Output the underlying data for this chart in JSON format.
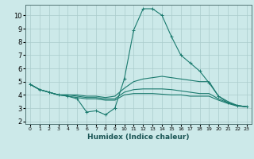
{
  "xlabel": "Humidex (Indice chaleur)",
  "xlim": [
    -0.5,
    23.5
  ],
  "ylim": [
    1.8,
    10.8
  ],
  "yticks": [
    2,
    3,
    4,
    5,
    6,
    7,
    8,
    9,
    10
  ],
  "xticks": [
    0,
    1,
    2,
    3,
    4,
    5,
    6,
    7,
    8,
    9,
    10,
    11,
    12,
    13,
    14,
    15,
    16,
    17,
    18,
    19,
    20,
    21,
    22,
    23
  ],
  "bg_color": "#cce9e9",
  "grid_color": "#aacccc",
  "line_color": "#1a7a6e",
  "line1_x": [
    0,
    1,
    2,
    3,
    4,
    5,
    6,
    7,
    8,
    9,
    10,
    11,
    12,
    13,
    14,
    15,
    16,
    17,
    18,
    19,
    20,
    21,
    22,
    23
  ],
  "line1_y": [
    4.8,
    4.4,
    4.2,
    4.0,
    3.9,
    3.7,
    2.7,
    2.8,
    2.5,
    3.0,
    5.2,
    8.9,
    10.5,
    10.5,
    10.0,
    8.4,
    7.0,
    6.4,
    5.8,
    4.9,
    3.9,
    3.4,
    3.2,
    3.1
  ],
  "line2_x": [
    0,
    1,
    2,
    3,
    4,
    5,
    6,
    7,
    8,
    9,
    10,
    11,
    12,
    13,
    14,
    15,
    16,
    17,
    18,
    19,
    20,
    21,
    22,
    23
  ],
  "line2_y": [
    4.8,
    4.4,
    4.2,
    4.0,
    4.0,
    4.0,
    3.9,
    3.9,
    3.8,
    3.9,
    4.5,
    5.0,
    5.2,
    5.3,
    5.4,
    5.3,
    5.2,
    5.1,
    5.0,
    5.0,
    3.9,
    3.5,
    3.2,
    3.1
  ],
  "line3_x": [
    0,
    1,
    2,
    3,
    4,
    5,
    6,
    7,
    8,
    9,
    10,
    11,
    12,
    13,
    14,
    15,
    16,
    17,
    18,
    19,
    20,
    21,
    22,
    23
  ],
  "line3_y": [
    4.8,
    4.4,
    4.2,
    4.0,
    4.0,
    3.9,
    3.8,
    3.8,
    3.7,
    3.7,
    4.2,
    4.4,
    4.45,
    4.45,
    4.45,
    4.4,
    4.3,
    4.2,
    4.1,
    4.1,
    3.7,
    3.4,
    3.2,
    3.1
  ],
  "line4_x": [
    0,
    1,
    2,
    3,
    4,
    5,
    6,
    7,
    8,
    9,
    10,
    11,
    12,
    13,
    14,
    15,
    16,
    17,
    18,
    19,
    20,
    21,
    22,
    23
  ],
  "line4_y": [
    4.8,
    4.4,
    4.2,
    4.0,
    3.9,
    3.8,
    3.7,
    3.7,
    3.6,
    3.6,
    4.0,
    4.1,
    4.1,
    4.1,
    4.05,
    4.0,
    4.0,
    3.9,
    3.9,
    3.9,
    3.6,
    3.35,
    3.15,
    3.1
  ],
  "marker": "+"
}
